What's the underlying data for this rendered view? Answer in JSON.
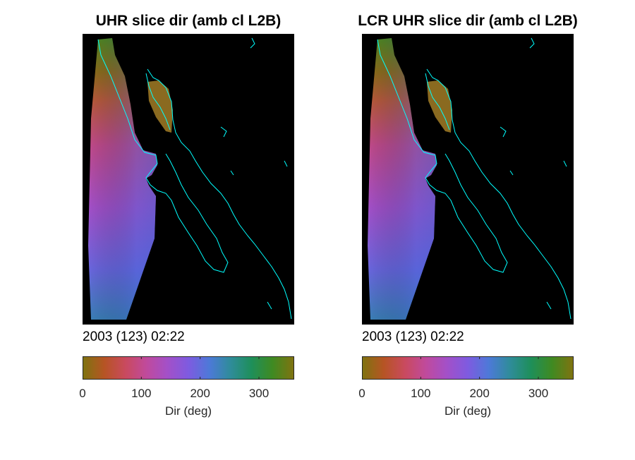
{
  "chart_data": [
    {
      "type": "heatmap",
      "title": "UHR slice dir (amb cl L2B)",
      "timestamp": "2003 (123) 02:22",
      "colorbar": {
        "label": "Dir (deg)",
        "range": [
          0,
          360
        ],
        "ticks": [
          0,
          100,
          200,
          300
        ],
        "tick_labels": [
          "0",
          "100",
          "200",
          "300"
        ],
        "colormap": [
          "#7f7310",
          "#b65424",
          "#c94a5e",
          "#c04a9c",
          "#a350c8",
          "#7e5be0",
          "#4d79d8",
          "#2f8c9a",
          "#1e8f5a",
          "#3f8a22",
          "#7f7310"
        ]
      },
      "background_color": "#000000",
      "coastline_color": "#00ffff"
    },
    {
      "type": "heatmap",
      "title": "LCR UHR slice dir (amb cl L2B)",
      "timestamp": "2003 (123) 02:22",
      "colorbar": {
        "label": "Dir (deg)",
        "range": [
          0,
          360
        ],
        "ticks": [
          0,
          100,
          200,
          300
        ],
        "tick_labels": [
          "0",
          "100",
          "200",
          "300"
        ],
        "colormap": [
          "#7f7310",
          "#b65424",
          "#c94a5e",
          "#c04a9c",
          "#a350c8",
          "#7e5be0",
          "#4d79d8",
          "#2f8c9a",
          "#1e8f5a",
          "#3f8a22",
          "#7f7310"
        ]
      },
      "background_color": "#000000",
      "coastline_color": "#00ffff"
    }
  ]
}
